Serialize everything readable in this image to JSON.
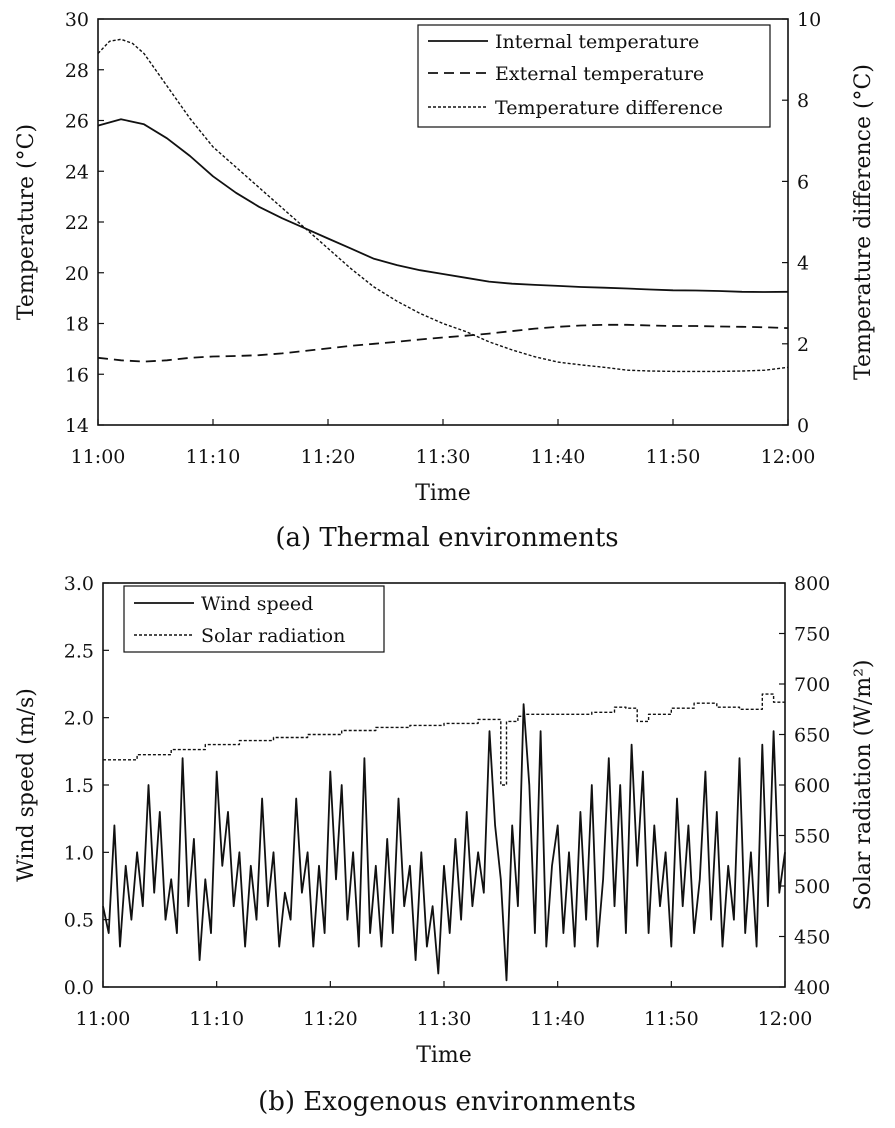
{
  "chart_data": [
    {
      "type": "line",
      "caption": "(a) Thermal environments",
      "xlabel": "Time",
      "ylabel": "Temperature (°C)",
      "y2label": "Temperature difference (°C)",
      "x_ticks": [
        "11:00",
        "11:10",
        "11:20",
        "11:30",
        "11:40",
        "11:50",
        "12:00"
      ],
      "xlim_minutes": [
        0,
        60
      ],
      "ylim": [
        14,
        30
      ],
      "y_ticks": [
        "14",
        "16",
        "18",
        "20",
        "22",
        "24",
        "26",
        "28",
        "30"
      ],
      "y2lim": [
        0,
        10
      ],
      "y2_ticks": [
        "0",
        "2",
        "4",
        "6",
        "8",
        "10"
      ],
      "legend_position": "top-right",
      "series": [
        {
          "name": "Internal temperature",
          "axis": "left",
          "style": "solid",
          "x": [
            0,
            2,
            4,
            6,
            8,
            10,
            12,
            14,
            16,
            18,
            20,
            22,
            24,
            26,
            28,
            30,
            32,
            34,
            36,
            38,
            40,
            42,
            44,
            46,
            48,
            50,
            52,
            54,
            56,
            58,
            60
          ],
          "y": [
            25.8,
            26.05,
            25.85,
            25.3,
            24.6,
            23.8,
            23.15,
            22.6,
            22.15,
            21.75,
            21.35,
            20.95,
            20.55,
            20.3,
            20.1,
            19.95,
            19.8,
            19.65,
            19.57,
            19.52,
            19.48,
            19.44,
            19.41,
            19.38,
            19.34,
            19.31,
            19.3,
            19.28,
            19.25,
            19.24,
            19.25
          ]
        },
        {
          "name": "External temperature",
          "axis": "left",
          "style": "dashed",
          "x": [
            0,
            2,
            4,
            6,
            8,
            10,
            12,
            14,
            16,
            18,
            20,
            22,
            24,
            26,
            28,
            30,
            32,
            34,
            36,
            38,
            40,
            42,
            44,
            46,
            48,
            50,
            52,
            54,
            56,
            58,
            60
          ],
          "y": [
            16.65,
            16.55,
            16.5,
            16.55,
            16.65,
            16.7,
            16.72,
            16.75,
            16.82,
            16.92,
            17.02,
            17.12,
            17.2,
            17.28,
            17.37,
            17.45,
            17.52,
            17.6,
            17.7,
            17.8,
            17.87,
            17.92,
            17.95,
            17.95,
            17.92,
            17.9,
            17.9,
            17.88,
            17.87,
            17.85,
            17.82
          ]
        },
        {
          "name": "Temperature difference",
          "axis": "right",
          "style": "dotted",
          "x": [
            0,
            1,
            2,
            3,
            4,
            6,
            8,
            10,
            12,
            14,
            16,
            18,
            20,
            22,
            24,
            26,
            28,
            30,
            32,
            34,
            36,
            38,
            40,
            42,
            44,
            46,
            48,
            50,
            52,
            54,
            56,
            58,
            60
          ],
          "y": [
            9.15,
            9.45,
            9.5,
            9.4,
            9.15,
            8.35,
            7.55,
            6.85,
            6.35,
            5.85,
            5.35,
            4.85,
            4.35,
            3.85,
            3.4,
            3.05,
            2.75,
            2.5,
            2.3,
            2.05,
            1.85,
            1.68,
            1.55,
            1.48,
            1.42,
            1.35,
            1.33,
            1.32,
            1.32,
            1.32,
            1.33,
            1.35,
            1.42
          ]
        }
      ]
    },
    {
      "type": "line",
      "caption": "(b) Exogenous environments",
      "xlabel": "Time",
      "ylabel": "Wind speed (m/s)",
      "y2label": "Solar radiation (W/m²)",
      "x_ticks": [
        "11:00",
        "11:10",
        "11:20",
        "11:30",
        "11:40",
        "11:50",
        "12:00"
      ],
      "xlim_minutes": [
        0,
        60
      ],
      "ylim": [
        0,
        3
      ],
      "y_ticks": [
        "0.0",
        "0.5",
        "1.0",
        "1.5",
        "2.0",
        "2.5",
        "3.0"
      ],
      "y2lim": [
        400,
        800
      ],
      "y2_ticks": [
        "400",
        "450",
        "500",
        "550",
        "600",
        "650",
        "700",
        "750",
        "800"
      ],
      "legend_position": "top-left",
      "series": [
        {
          "name": "Wind speed",
          "axis": "left",
          "style": "solid",
          "x": [
            0,
            0.5,
            1,
            1.5,
            2,
            2.5,
            3,
            3.5,
            4,
            4.5,
            5,
            5.5,
            6,
            6.5,
            7,
            7.5,
            8,
            8.5,
            9,
            9.5,
            10,
            10.5,
            11,
            11.5,
            12,
            12.5,
            13,
            13.5,
            14,
            14.5,
            15,
            15.5,
            16,
            16.5,
            17,
            17.5,
            18,
            18.5,
            19,
            19.5,
            20,
            20.5,
            21,
            21.5,
            22,
            22.5,
            23,
            23.5,
            24,
            24.5,
            25,
            25.5,
            26,
            26.5,
            27,
            27.5,
            28,
            28.5,
            29,
            29.5,
            30,
            30.5,
            31,
            31.5,
            32,
            32.5,
            33,
            33.5,
            34,
            34.5,
            35,
            35.5,
            36,
            36.5,
            37,
            37.5,
            38,
            38.5,
            39,
            39.5,
            40,
            40.5,
            41,
            41.5,
            42,
            42.5,
            43,
            43.5,
            44,
            44.5,
            45,
            45.5,
            46,
            46.5,
            47,
            47.5,
            48,
            48.5,
            49,
            49.5,
            50,
            50.5,
            51,
            51.5,
            52,
            52.5,
            53,
            53.5,
            54,
            54.5,
            55,
            55.5,
            56,
            56.5,
            57,
            57.5,
            58,
            58.5,
            59,
            59.5,
            60
          ],
          "y": [
            0.6,
            0.4,
            1.2,
            0.3,
            0.9,
            0.5,
            1.0,
            0.6,
            1.5,
            0.7,
            1.3,
            0.5,
            0.8,
            0.4,
            1.7,
            0.6,
            1.1,
            0.2,
            0.8,
            0.4,
            1.6,
            0.9,
            1.3,
            0.6,
            1.0,
            0.3,
            0.9,
            0.5,
            1.4,
            0.6,
            1.0,
            0.3,
            0.7,
            0.5,
            1.4,
            0.7,
            1.0,
            0.3,
            0.9,
            0.4,
            1.6,
            0.8,
            1.5,
            0.5,
            1.0,
            0.3,
            1.7,
            0.4,
            0.9,
            0.3,
            1.1,
            0.4,
            1.4,
            0.6,
            0.9,
            0.2,
            1.0,
            0.3,
            0.6,
            0.1,
            0.9,
            0.4,
            1.1,
            0.5,
            1.3,
            0.6,
            1.0,
            0.7,
            1.9,
            1.2,
            0.8,
            0.05,
            1.2,
            0.6,
            2.1,
            1.5,
            0.4,
            1.9,
            0.3,
            0.9,
            1.2,
            0.4,
            1.0,
            0.3,
            1.3,
            0.5,
            1.5,
            0.3,
            0.8,
            1.7,
            0.6,
            1.5,
            0.4,
            1.8,
            0.9,
            1.6,
            0.4,
            1.2,
            0.6,
            1.0,
            0.3,
            1.4,
            0.6,
            1.2,
            0.4,
            0.8,
            1.6,
            0.5,
            1.3,
            0.3,
            0.9,
            0.5,
            1.7,
            0.4,
            1.0,
            0.3,
            1.8,
            0.6,
            1.9,
            0.7,
            1.0
          ]
        },
        {
          "name": "Solar radiation",
          "axis": "right",
          "style": "dotted-step",
          "x": [
            0,
            3,
            6,
            9,
            12,
            15,
            18,
            21,
            24,
            27,
            30,
            33,
            34.5,
            35,
            35.5,
            36,
            36.5,
            37,
            40,
            43,
            45,
            46,
            47,
            48,
            50,
            52,
            54,
            56,
            58,
            59,
            60
          ],
          "y": [
            625,
            630,
            635,
            640,
            644,
            647,
            650,
            654,
            657,
            659,
            661,
            665,
            665,
            600,
            663,
            663,
            668,
            670,
            670,
            672,
            677,
            676,
            663,
            670,
            676,
            681,
            677,
            675,
            690,
            682,
            682
          ]
        }
      ]
    }
  ]
}
